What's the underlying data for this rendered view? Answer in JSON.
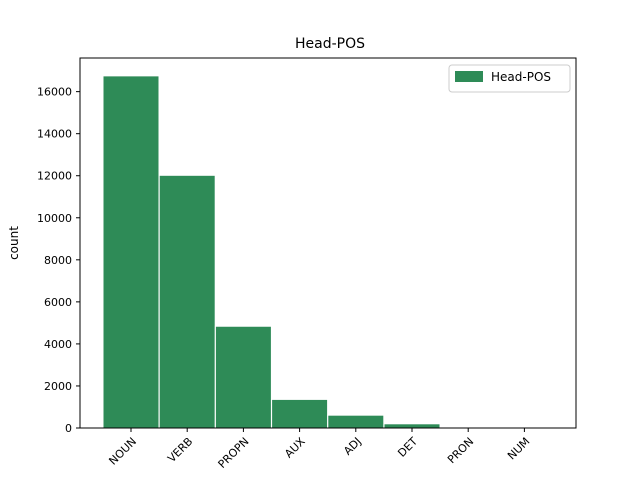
{
  "chart_data": {
    "type": "bar",
    "title": "Head-POS",
    "xlabel": "",
    "ylabel": "count",
    "categories": [
      "NOUN",
      "VERB",
      "PROPN",
      "AUX",
      "ADJ",
      "DET",
      "PRON",
      "NUM"
    ],
    "series": [
      {
        "name": "Head-POS",
        "values": [
          16750,
          12020,
          4840,
          1360,
          610,
          200,
          20,
          10
        ]
      }
    ],
    "ylim": [
      0,
      17600
    ],
    "yticks": [
      0,
      2000,
      4000,
      6000,
      8000,
      10000,
      12000,
      14000,
      16000
    ],
    "tick_rotation_deg": -45,
    "grid": false,
    "legend_position": "top-right",
    "colors": {
      "bar": "#2e8b57",
      "edge": "#ffffff"
    }
  }
}
